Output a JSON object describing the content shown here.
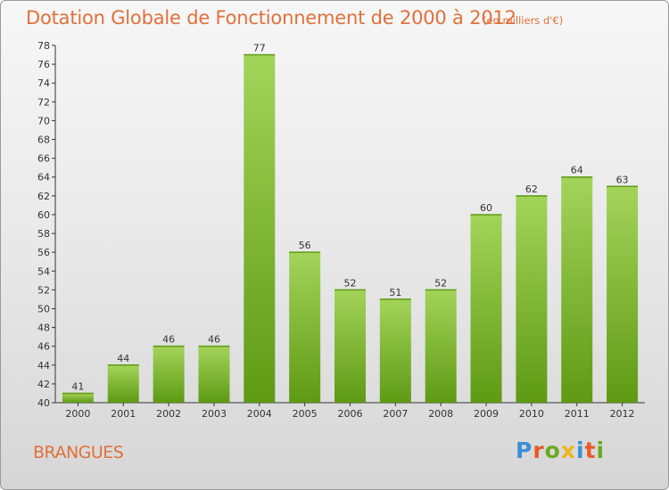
{
  "header": {
    "title": "Dotation Globale de Fonctionnement de 2000 à 2012",
    "unit_note": "(en milliers d'€)"
  },
  "footer": {
    "commune": "BRANGUES",
    "logo_text": "Proxiti"
  },
  "colors": {
    "title": "#e0703a",
    "bar_light": "#a3d45a",
    "bar_dark": "#5e9a14",
    "logo": [
      "#3a8fd6",
      "#e85a2a",
      "#6aaa1e",
      "#f0b41e",
      "#3a8fd6",
      "#e85a2a",
      "#6aaa1e"
    ]
  },
  "chart_data": {
    "type": "bar",
    "categories": [
      "2000",
      "2001",
      "2002",
      "2003",
      "2004",
      "2005",
      "2006",
      "2007",
      "2008",
      "2009",
      "2010",
      "2011",
      "2012"
    ],
    "values": [
      41,
      44,
      46,
      46,
      77,
      56,
      52,
      51,
      52,
      60,
      62,
      64,
      63
    ],
    "ylim": [
      40,
      78
    ],
    "yticks": [
      40,
      42,
      44,
      46,
      48,
      50,
      52,
      54,
      56,
      58,
      60,
      62,
      64,
      66,
      68,
      70,
      72,
      74,
      76,
      78
    ],
    "grid": false,
    "legend": "none"
  }
}
